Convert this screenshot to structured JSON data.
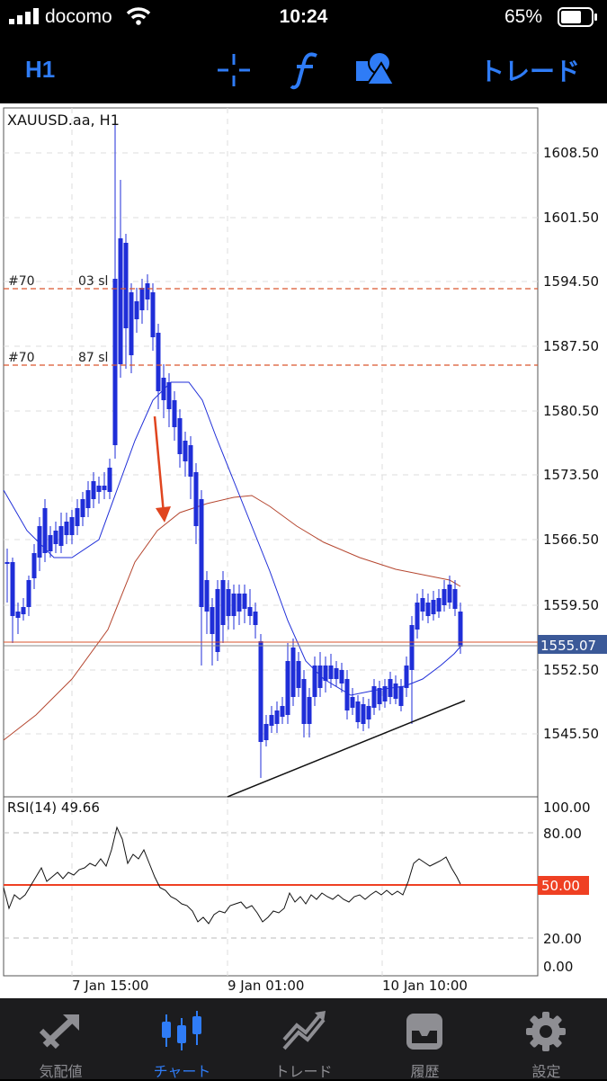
{
  "status": {
    "carrier": "docomo",
    "time": "10:24",
    "battery": "65%"
  },
  "toolbar": {
    "timeframe": "H1",
    "trade_label": "トレード"
  },
  "chart": {
    "symbol_title": "XAUUSD.aa, H1",
    "price_labels": [
      "1608.50",
      "1601.50",
      "1594.50",
      "1587.50",
      "1580.50",
      "1573.50",
      "1566.50",
      "1559.50",
      "1552.50",
      "1545.50"
    ],
    "current_price": "1555.07",
    "order_line_1_tag": "#70",
    "order_line_1_text": "03 sl",
    "order_line_2_tag": "#70",
    "order_line_2_text": "87 sl",
    "rsi_title": "RSI(14) 49.66",
    "rsi_levels": [
      "100.00",
      "80.00",
      "20.00",
      "0.00"
    ],
    "rsi_mid_label": "50.00",
    "time_labels": [
      "7 Jan 15:00",
      "9 Jan 01:00",
      "10 Jan 10:00"
    ],
    "colors": {
      "bull": "#d9562e",
      "bear": "#1f2ed8",
      "price_tag": "#3b5998",
      "rsi_mid": "#ef4023"
    }
  },
  "tabs": [
    {
      "label": "気配値",
      "icon": "quotes-icon"
    },
    {
      "label": "チャート",
      "icon": "chart-icon"
    },
    {
      "label": "トレード",
      "icon": "trade-icon"
    },
    {
      "label": "履歴",
      "icon": "history-icon"
    },
    {
      "label": "設定",
      "icon": "settings-icon"
    }
  ]
}
